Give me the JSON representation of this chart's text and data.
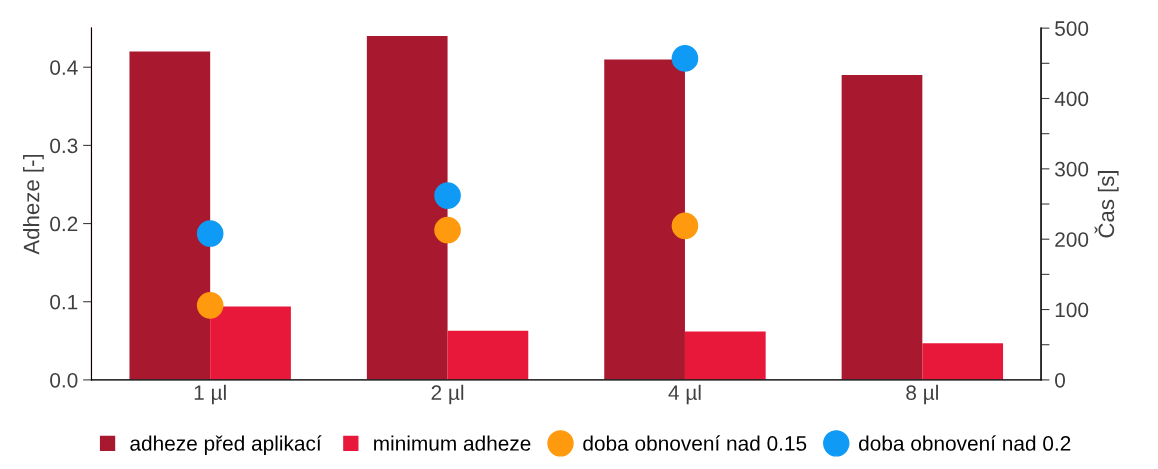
{
  "chart_data": {
    "type": "bar",
    "ylabel": "Adheze [-]",
    "y2label": "Čas [s]",
    "categories": [
      "1 µl",
      "2 µl",
      "4 µl",
      "8 µl"
    ],
    "series": [
      {
        "name": "adheze před aplikací",
        "color": "#a8192f",
        "values": [
          0.42,
          0.44,
          0.41,
          0.39
        ]
      },
      {
        "name": "minimum adheze",
        "color": "#e8183a",
        "values": [
          0.094,
          0.063,
          0.062,
          0.047
        ]
      },
      {
        "name": "doba obnovení nad 0.15",
        "type": "scatter",
        "axis": "y2",
        "color": "#ff9a0e",
        "values": [
          106,
          213,
          219,
          null
        ]
      },
      {
        "name": "doba obnovení nad 0.2",
        "type": "scatter",
        "axis": "y2",
        "color": "#0f9bf5",
        "values": [
          208,
          262,
          457,
          null
        ]
      }
    ],
    "ylim": [
      0,
      0.45
    ],
    "yticks": [
      {
        "value": 0,
        "label": "0.0"
      },
      0.1,
      0.2,
      0.3,
      0.4
    ],
    "y2lim": [
      0,
      500
    ],
    "y2ticks": [
      0,
      {
        "value": 50,
        "label": null
      },
      100,
      {
        "value": 150,
        "label": null
      },
      200,
      {
        "value": 250,
        "label": null
      },
      300,
      {
        "value": 350,
        "label": null
      },
      400,
      {
        "value": 450,
        "label": null
      },
      500
    ],
    "marker": "circle",
    "legend": "bottom",
    "grid": false
  }
}
